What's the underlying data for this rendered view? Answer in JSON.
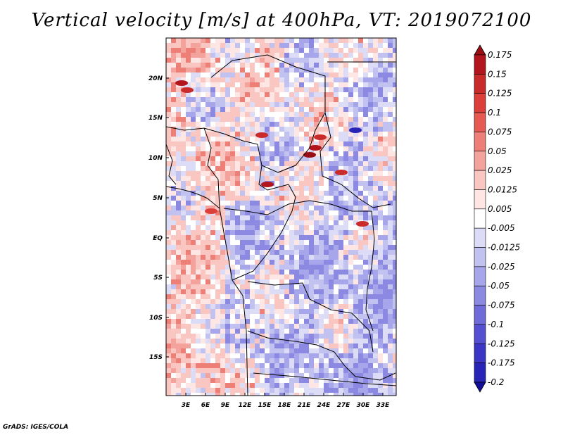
{
  "title": "Vertical velocity [m/s] at 400hPa, VT: 2019072100",
  "credit": "GrADS: IGES/COLA",
  "map": {
    "lat_labels": [
      "20N",
      "15N",
      "10N",
      "5N",
      "EQ",
      "5S",
      "10S",
      "15S"
    ],
    "lon_labels": [
      "3E",
      "6E",
      "9E",
      "12E",
      "15E",
      "18E",
      "21E",
      "24E",
      "27E",
      "30E",
      "33E"
    ],
    "colors": {
      "positive": "#d73027",
      "negative": "#4a4fd6",
      "neutral": "#f3f1f8"
    }
  },
  "colorbar": {
    "labels": [
      "0.175",
      "0.15",
      "0.125",
      "0.1",
      "0.075",
      "0.05",
      "0.025",
      "0.0125",
      "0.005",
      "-0.005",
      "-0.0125",
      "-0.025",
      "-0.05",
      "-0.075",
      "-0.1",
      "-0.125",
      "-0.175",
      "-0.2"
    ],
    "colors": [
      "#9a0f16",
      "#b3151c",
      "#c92a2a",
      "#dc3e3a",
      "#e65a52",
      "#ee7f77",
      "#f4a39c",
      "#f9c6c1",
      "#fde6e3",
      "#ffffff",
      "#dcdcf7",
      "#c2c2f0",
      "#a7a6ea",
      "#8b89e2",
      "#6f6cd9",
      "#5450d1",
      "#3b36c6",
      "#2824b6",
      "#140f99"
    ]
  }
}
